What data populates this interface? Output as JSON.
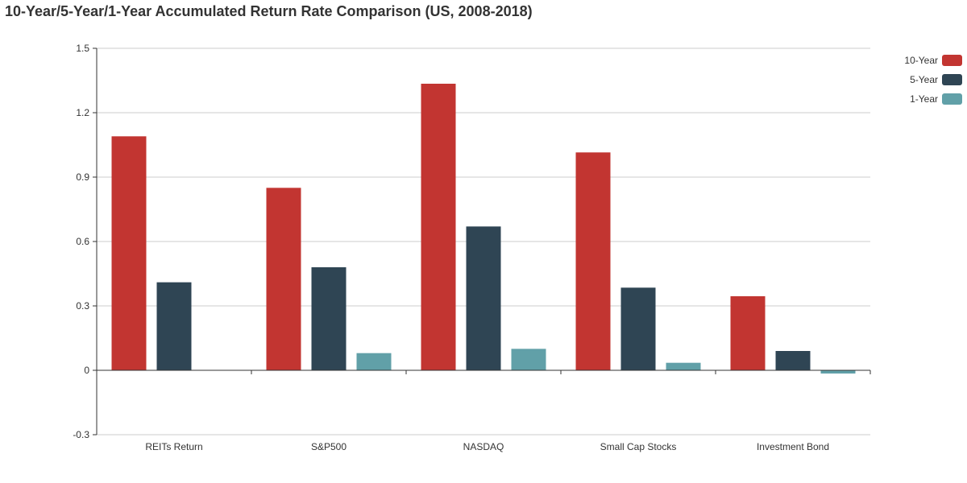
{
  "chart_data": {
    "type": "bar",
    "title": "10-Year/5-Year/1-Year Accumulated Return Rate Comparison (US, 2008-2018)",
    "xlabel": "",
    "ylabel": "",
    "categories": [
      "REITs Return",
      "S&P500",
      "NASDAQ",
      "Small Cap Stocks",
      "Investment Bond"
    ],
    "series": [
      {
        "name": "10-Year",
        "color": "#c23531",
        "values": [
          1.09,
          0.85,
          1.335,
          1.015,
          0.345
        ]
      },
      {
        "name": "5-Year",
        "color": "#2f4554",
        "values": [
          0.41,
          0.48,
          0.67,
          0.385,
          0.09
        ]
      },
      {
        "name": "1-Year",
        "color": "#61a0a8",
        "values": [
          0,
          0.08,
          0.1,
          0.035,
          -0.015
        ]
      }
    ],
    "ylim": [
      -0.3,
      1.5
    ],
    "yticks": [
      "-0.3",
      "0",
      "0.3",
      "0.6",
      "0.9",
      "1.2",
      "1.5"
    ],
    "grid": true,
    "legend_position": "top-right"
  }
}
